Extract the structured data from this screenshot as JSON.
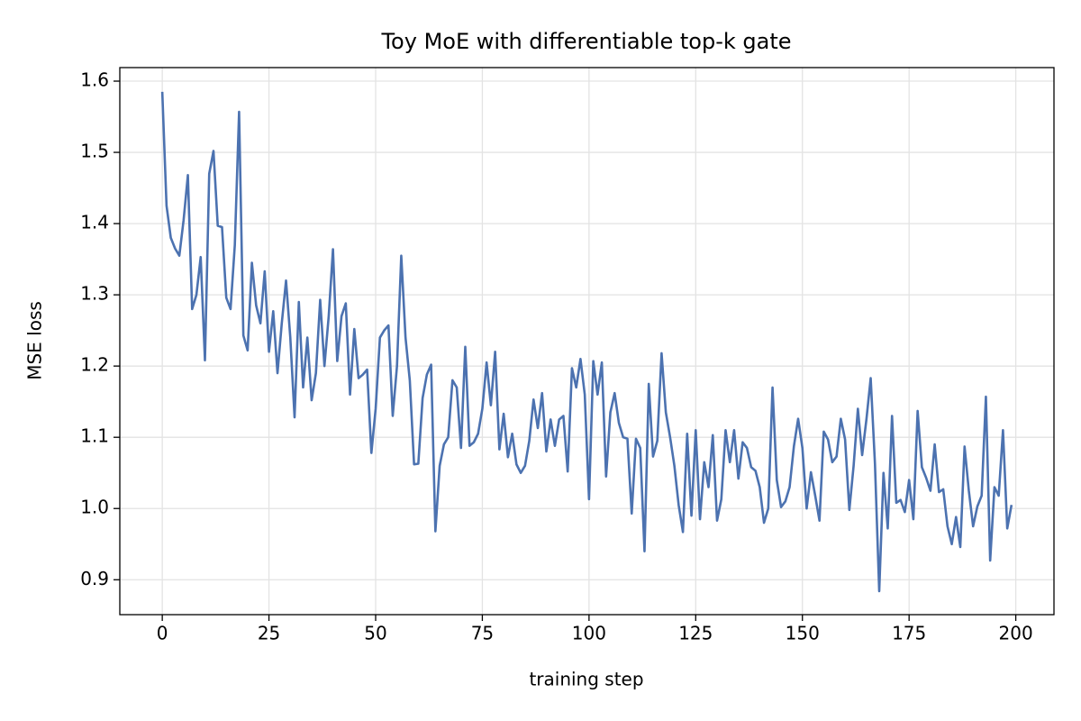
{
  "chart_data": {
    "type": "line",
    "title": "Toy MoE with differentiable top-k gate",
    "xlabel": "training step",
    "ylabel": "MSE loss",
    "x": [
      0,
      1,
      2,
      3,
      4,
      5,
      6,
      7,
      8,
      9,
      10,
      11,
      12,
      13,
      14,
      15,
      16,
      17,
      18,
      19,
      20,
      21,
      22,
      23,
      24,
      25,
      26,
      27,
      28,
      29,
      30,
      31,
      32,
      33,
      34,
      35,
      36,
      37,
      38,
      39,
      40,
      41,
      42,
      43,
      44,
      45,
      46,
      47,
      48,
      49,
      50,
      51,
      52,
      53,
      54,
      55,
      56,
      57,
      58,
      59,
      60,
      61,
      62,
      63,
      64,
      65,
      66,
      67,
      68,
      69,
      70,
      71,
      72,
      73,
      74,
      75,
      76,
      77,
      78,
      79,
      80,
      81,
      82,
      83,
      84,
      85,
      86,
      87,
      88,
      89,
      90,
      91,
      92,
      93,
      94,
      95,
      96,
      97,
      98,
      99,
      100,
      101,
      102,
      103,
      104,
      105,
      106,
      107,
      108,
      109,
      110,
      111,
      112,
      113,
      114,
      115,
      116,
      117,
      118,
      119,
      120,
      121,
      122,
      123,
      124,
      125,
      126,
      127,
      128,
      129,
      130,
      131,
      132,
      133,
      134,
      135,
      136,
      137,
      138,
      139,
      140,
      141,
      142,
      143,
      144,
      145,
      146,
      147,
      148,
      149,
      150,
      151,
      152,
      153,
      154,
      155,
      156,
      157,
      158,
      159,
      160,
      161,
      162,
      163,
      164,
      165,
      166,
      167,
      168,
      169,
      170,
      171,
      172,
      173,
      174,
      175,
      176,
      177,
      178,
      179,
      180,
      181,
      182,
      183,
      184,
      185,
      186,
      187,
      188,
      189,
      190,
      191,
      192,
      193,
      194,
      195,
      196,
      197,
      198,
      199
    ],
    "series": [
      {
        "name": "MSE loss",
        "color": "#4c72b0",
        "values": [
          1.585,
          1.425,
          1.38,
          1.365,
          1.355,
          1.405,
          1.468,
          1.28,
          1.3,
          1.353,
          1.208,
          1.47,
          1.502,
          1.397,
          1.395,
          1.296,
          1.28,
          1.37,
          1.557,
          1.243,
          1.222,
          1.345,
          1.285,
          1.26,
          1.333,
          1.22,
          1.277,
          1.19,
          1.26,
          1.32,
          1.24,
          1.128,
          1.29,
          1.17,
          1.24,
          1.152,
          1.19,
          1.293,
          1.2,
          1.27,
          1.364,
          1.207,
          1.27,
          1.288,
          1.16,
          1.252,
          1.183,
          1.188,
          1.195,
          1.078,
          1.14,
          1.24,
          1.25,
          1.257,
          1.13,
          1.2,
          1.355,
          1.24,
          1.18,
          1.062,
          1.063,
          1.155,
          1.188,
          1.202,
          0.968,
          1.06,
          1.09,
          1.1,
          1.18,
          1.17,
          1.085,
          1.227,
          1.088,
          1.093,
          1.105,
          1.14,
          1.205,
          1.145,
          1.22,
          1.083,
          1.133,
          1.072,
          1.105,
          1.062,
          1.05,
          1.06,
          1.095,
          1.153,
          1.113,
          1.162,
          1.08,
          1.125,
          1.088,
          1.125,
          1.13,
          1.052,
          1.197,
          1.17,
          1.21,
          1.16,
          1.013,
          1.207,
          1.16,
          1.205,
          1.045,
          1.135,
          1.162,
          1.12,
          1.1,
          1.098,
          0.993,
          1.098,
          1.085,
          0.94,
          1.175,
          1.073,
          1.095,
          1.218,
          1.135,
          1.1,
          1.06,
          1.005,
          0.967,
          1.105,
          0.99,
          1.11,
          0.985,
          1.065,
          1.03,
          1.103,
          0.983,
          1.013,
          1.11,
          1.065,
          1.11,
          1.042,
          1.093,
          1.085,
          1.058,
          1.053,
          1.03,
          0.98,
          1.0,
          1.17,
          1.04,
          1.002,
          1.01,
          1.03,
          1.087,
          1.126,
          1.085,
          1.0,
          1.051,
          1.018,
          0.983,
          1.108,
          1.097,
          1.065,
          1.073,
          1.126,
          1.097,
          0.998,
          1.06,
          1.14,
          1.075,
          1.125,
          1.183,
          1.063,
          0.884,
          1.05,
          0.972,
          1.13,
          1.008,
          1.012,
          0.995,
          1.04,
          0.985,
          1.137,
          1.058,
          1.043,
          1.025,
          1.09,
          1.023,
          1.027,
          0.975,
          0.95,
          0.988,
          0.946,
          1.087,
          1.025,
          0.975,
          1.003,
          1.018,
          1.157,
          0.927,
          1.03,
          1.018,
          1.11,
          0.972,
          1.005
        ]
      }
    ],
    "xlim": [
      -9.95,
      208.95
    ],
    "xticks": [
      0,
      25,
      50,
      75,
      100,
      125,
      150,
      175,
      200
    ],
    "ylim": [
      0.851,
      1.619
    ],
    "yticks": [
      0.9,
      {
        "value": 1,
        "label": "1.0"
      },
      1.1,
      1.2,
      1.3,
      1.4,
      1.5,
      1.6
    ],
    "grid": true
  }
}
